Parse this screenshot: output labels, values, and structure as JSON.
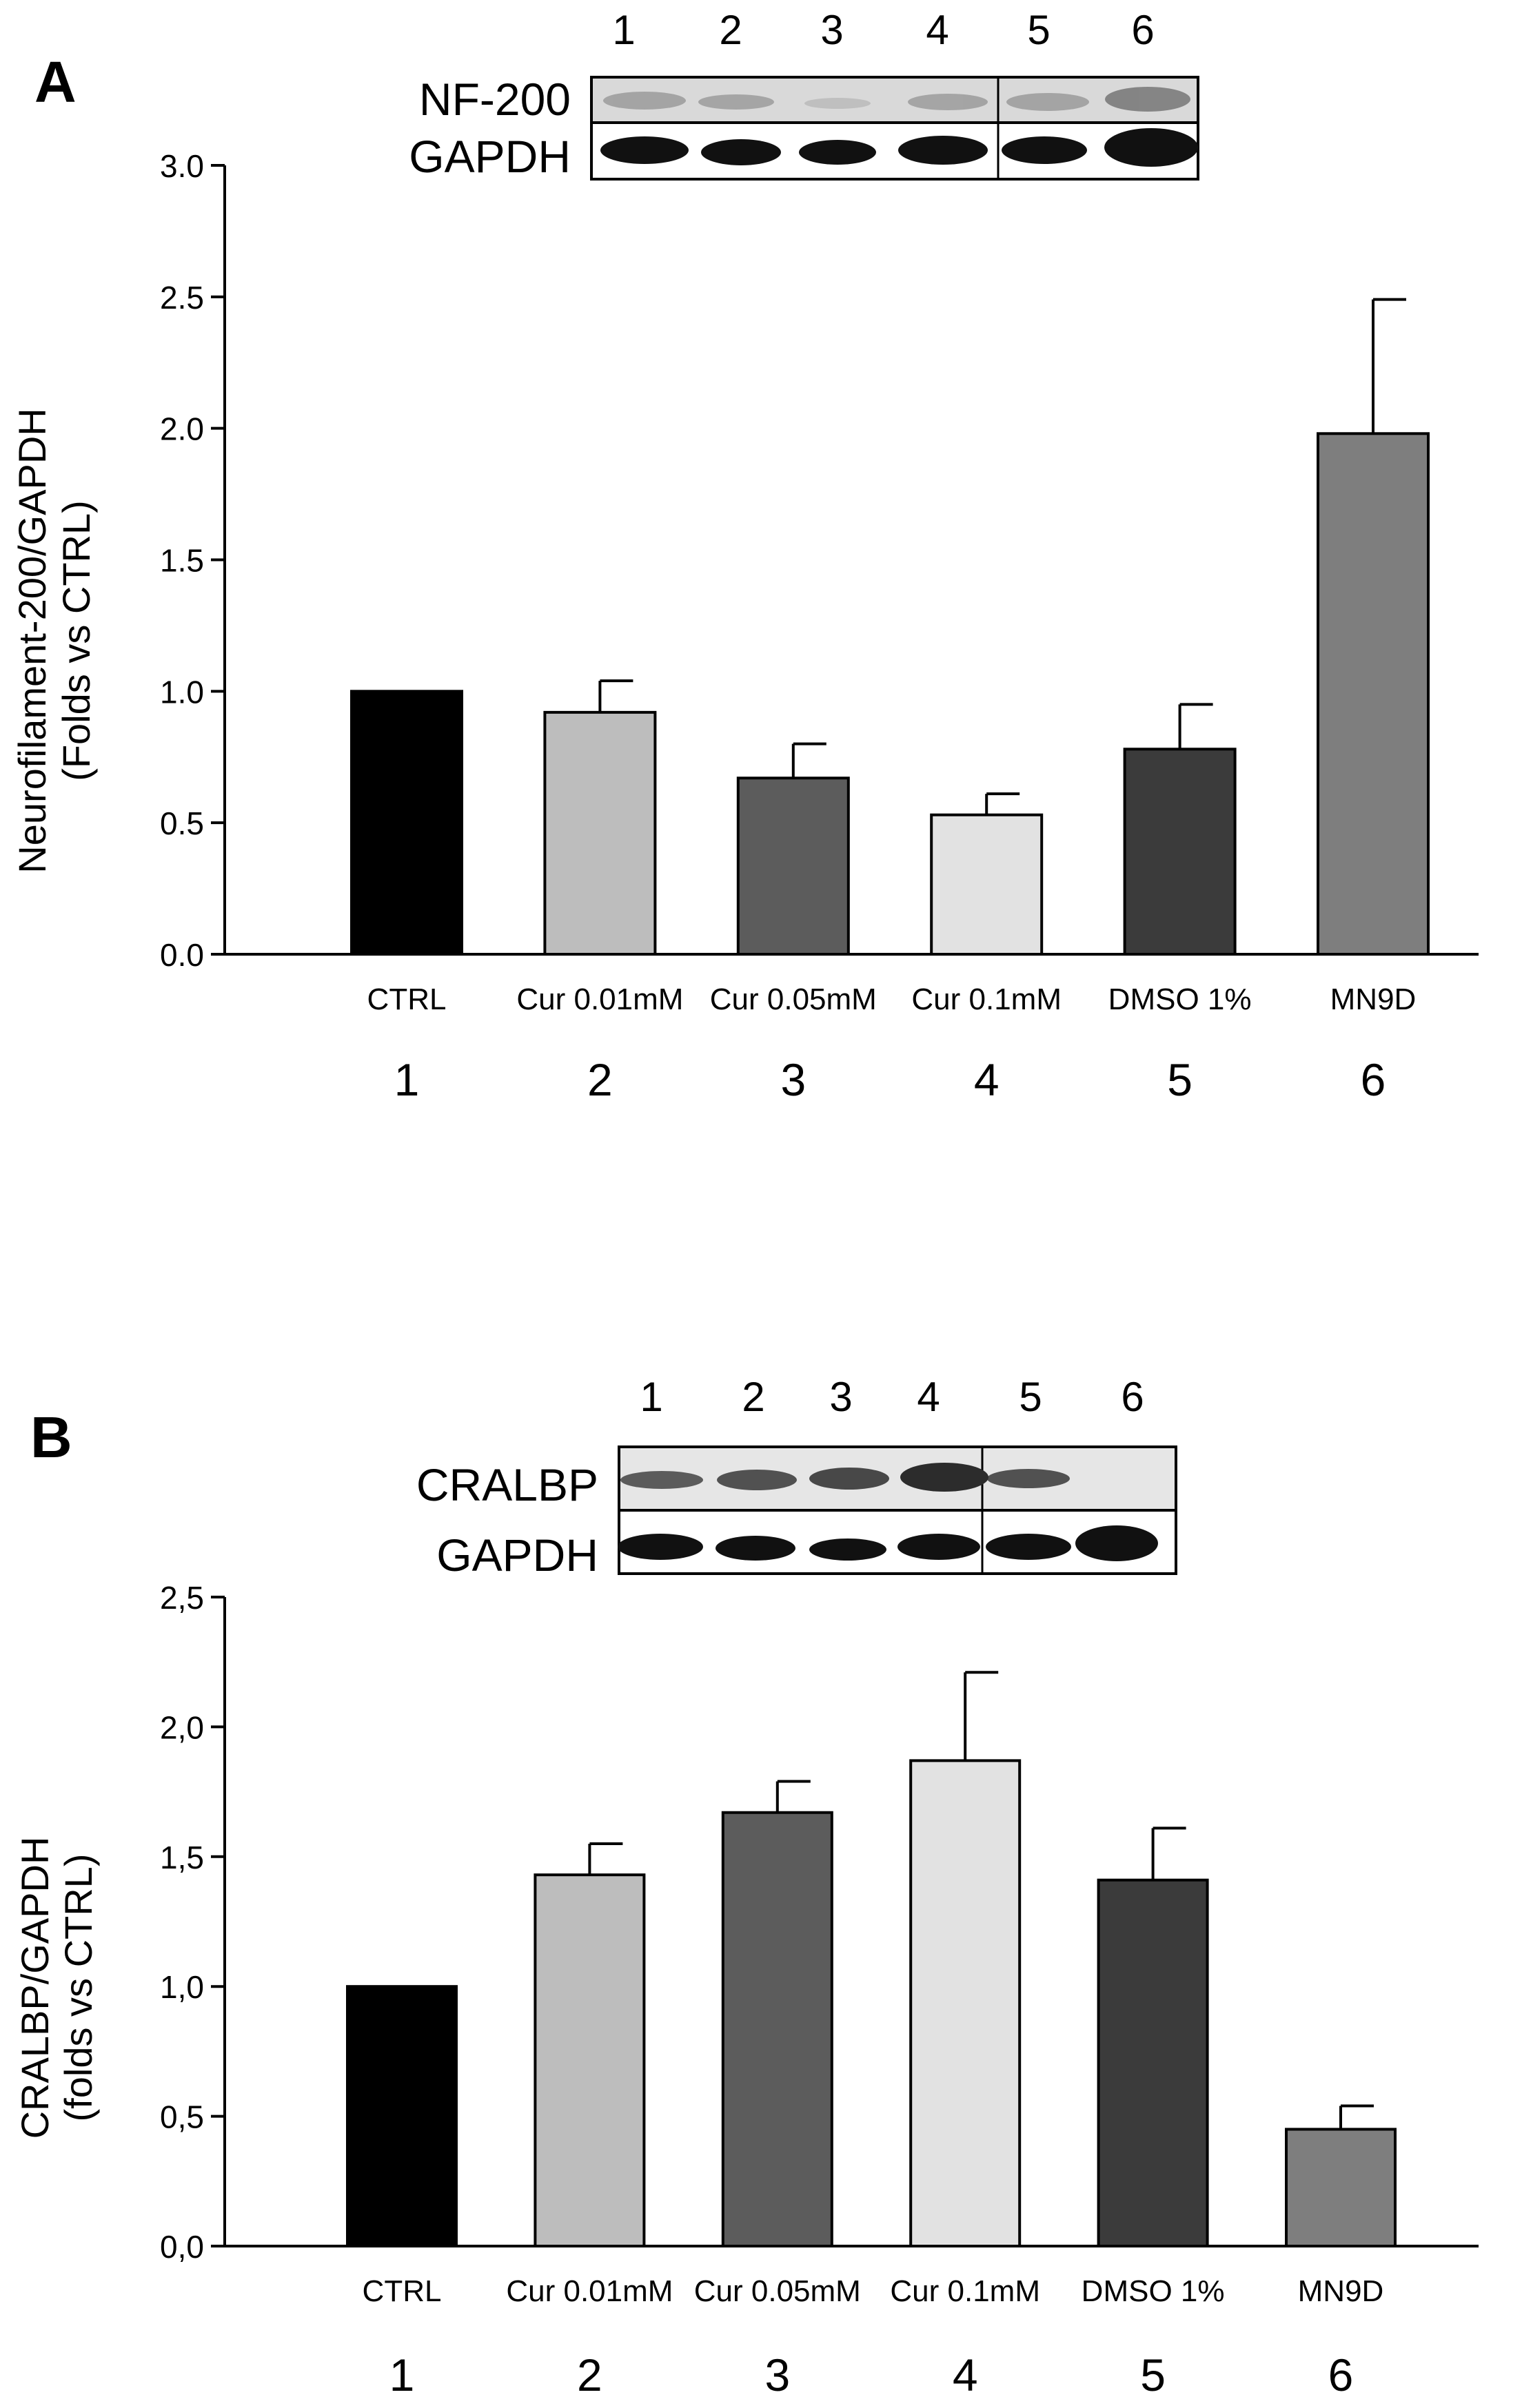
{
  "panels": [
    {
      "panel_letter": "A",
      "blot": {
        "lane_numbers": [
          "1",
          "2",
          "3",
          "4",
          "5",
          "6"
        ],
        "rows": [
          "NF-200",
          "GAPDH"
        ]
      },
      "lane_numbers": [
        "1",
        "2",
        "3",
        "4",
        "5",
        "6"
      ]
    },
    {
      "panel_letter": "B",
      "blot": {
        "lane_numbers": [
          "1",
          "2",
          "3",
          "4",
          "5",
          "6"
        ],
        "rows": [
          "CRALBP",
          "GAPDH"
        ]
      },
      "lane_numbers": [
        "1",
        "2",
        "3",
        "4",
        "5",
        "6"
      ]
    }
  ],
  "chart_data": [
    {
      "type": "bar",
      "title": "",
      "xlabel": "",
      "ylabel": [
        "Neurofilament-200/GAPDH",
        "(Folds vs CTRL)"
      ],
      "categories": [
        "CTRL",
        "Cur 0.01mM",
        "Cur 0.05mM",
        "Cur 0.1mM",
        "DMSO 1%",
        "MN9D"
      ],
      "values": [
        1.0,
        0.92,
        0.67,
        0.53,
        0.78,
        1.98
      ],
      "errors": [
        0,
        0.12,
        0.13,
        0.08,
        0.17,
        0.51
      ],
      "bar_colors": [
        "#000000",
        "#bdbdbd",
        "#5c5c5c",
        "#e2e2e2",
        "#3b3b3b",
        "#7e7e7e"
      ],
      "ylim": [
        0,
        3.0
      ],
      "yticks": [
        "0.0",
        "0.5",
        "1.0",
        "1.5",
        "2.0",
        "2.5",
        "3.0"
      ],
      "grid": false
    },
    {
      "type": "bar",
      "title": "",
      "xlabel": "",
      "ylabel": [
        "CRALBP/GAPDH",
        "(folds vs CTRL)"
      ],
      "categories": [
        "CTRL",
        "Cur 0.01mM",
        "Cur 0.05mM",
        "Cur 0.1mM",
        "DMSO 1%",
        "MN9D"
      ],
      "values": [
        1.0,
        1.43,
        1.67,
        1.87,
        1.41,
        0.45
      ],
      "errors": [
        0,
        0.12,
        0.12,
        0.34,
        0.2,
        0.09
      ],
      "bar_colors": [
        "#000000",
        "#bdbdbd",
        "#5c5c5c",
        "#e2e2e2",
        "#3b3b3b",
        "#7e7e7e"
      ],
      "ylim": [
        0,
        2.5
      ],
      "yticks": [
        "0,0",
        "0,5",
        "1,0",
        "1,5",
        "2,0",
        "2,5"
      ],
      "grid": false
    }
  ]
}
